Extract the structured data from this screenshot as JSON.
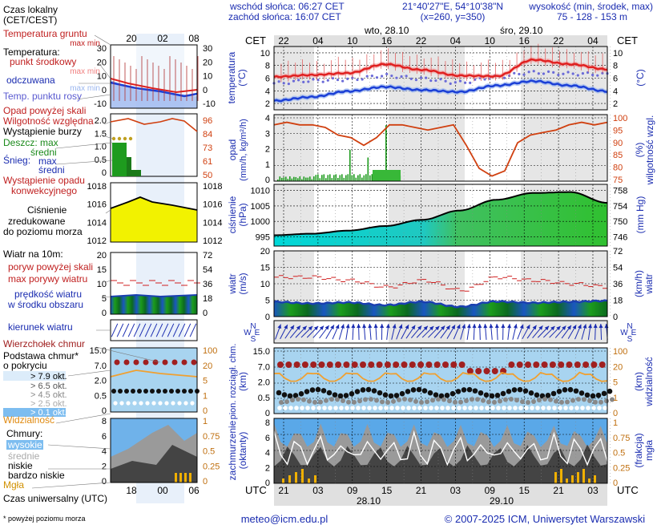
{
  "header": {
    "sunrise": "wschód słońca: 06:27 CET",
    "sunset": "zachód słońca: 16:07 CET",
    "coords": "21°40'27\"E, 54°10'38\"N",
    "grid": "(x=260, y=350)",
    "elev_label": "wysokość (min, środek, max)",
    "elev_values": "75 - 128 - 153 m"
  },
  "legend": {
    "local_time": "Czas lokalny",
    "local_time2": "(CET/CEST)",
    "ground_temp": "Temperatura gruntu",
    "maxmin": "max min",
    "temperature": "Temperatura:",
    "mid_point": "punkt środkowy",
    "maxmin2": "max min",
    "felt": "odczuwana",
    "maxmin3": "max min",
    "dew": "Temp. punktu rosy",
    "precip_over": "Opad powyżej skali",
    "humidity": "Wilgotność względna",
    "storm": "Wystąpienie burzy",
    "rain": "Deszcz: max",
    "rain_mid": "średni",
    "snow": "Śnieg:",
    "snow_max": "max",
    "snow_mid": "średni",
    "conv": "Wystąpienie opadu",
    "conv2": "konwekcyjnego",
    "pressure": "Ciśnienie",
    "pressure2": "zredukowane",
    "pressure3": "do poziomu morza",
    "wind10": "Wiatr na 10m:",
    "gust_over": "poryw powyżej skali",
    "gust_max": "max porywy wiatru",
    "wind_mean": "prędkość wiatru",
    "wind_mean2": "w środku obszaru",
    "wind_dir": "kierunek wiatru",
    "cloud_top": "Wierzchołek chmur",
    "cloud_base": "Podstawa chmur*",
    "cloud_base2": "o pokryciu",
    "okt79": "> 7.9 okt.",
    "okt65": "> 6.5 okt.",
    "okt45": "> 4.5 okt.",
    "okt25": "> 2.5 okt.",
    "okt01": "> 0.1 okt.",
    "visibility": "Widzialność",
    "clouds": "Chmury:",
    "high": "wysokie",
    "mid": "średnie",
    "low": "niskie",
    "vlow": "bardzo niskie",
    "fog": "Mgła",
    "utc": "Czas uniwersalny (UTC)",
    "footnote": "* powyżej poziomu morza"
  },
  "side": {
    "top_hours": [
      "20",
      "02",
      "08"
    ],
    "bottom_hours": [
      "18",
      "00",
      "06"
    ],
    "ground_yticks": [
      "30",
      "20",
      "10",
      "0",
      "-10"
    ],
    "ground_yticks_r": [
      "30",
      "20",
      "10",
      "0",
      "-10"
    ],
    "precip_yticks": [
      "2.0",
      "1.5",
      "1.0",
      "0.5",
      "0"
    ],
    "hum_yticks": [
      "96",
      "84",
      "73",
      "61",
      "50"
    ],
    "pres_yticks": [
      "1018",
      "1016",
      "1014",
      "1012"
    ],
    "pres_yticks_r": [
      "1018",
      "1016",
      "1014",
      "1012"
    ],
    "wind_yticks": [
      "20",
      "15",
      "10",
      "5",
      "0"
    ],
    "wind_yticks_r": [
      "72",
      "54",
      "36",
      "18",
      "0"
    ],
    "cloud_yticks": [
      "15.0",
      "7.0",
      "2.0",
      "0.5",
      "0"
    ],
    "vis_yticks": [
      "100",
      "20",
      "5",
      "1",
      "0"
    ],
    "cl_yticks": [
      "8",
      "6",
      "4",
      "2",
      "0"
    ],
    "cl_yticks_r": [
      "1",
      "0.75",
      "0.5",
      "0.25",
      "0"
    ]
  },
  "main": {
    "cet": "CET",
    "utc": "UTC",
    "day1": "wto, 28.10",
    "day2": "śro, 29.10",
    "date1": "28.10",
    "date2": "29.10",
    "cet_hours": [
      "22",
      "04",
      "10",
      "16",
      "22",
      "04",
      "10",
      "16",
      "22",
      "04"
    ],
    "utc_hours": [
      "21",
      "03",
      "09",
      "15",
      "21",
      "03",
      "09",
      "15",
      "21",
      "03"
    ],
    "temp_label": "temperatura",
    "temp_unit": "(°C)",
    "temp_yticks": [
      "10",
      "8",
      "6",
      "4",
      "2"
    ],
    "precip_label": "opad",
    "precip_unit": "(mm/h, kg/m²/h)",
    "precip_yticks": [
      "4",
      "3",
      "2",
      "1",
      "0"
    ],
    "hum_label": "wilgotność wzgl.",
    "hum_unit": "(%)",
    "hum_yticks": [
      "100",
      "95",
      "90",
      "85",
      "80",
      "75"
    ],
    "pres_label": "ciśnienie",
    "pres_unit": "(hPa)",
    "pres_yticks": [
      "1010",
      "1005",
      "1000",
      "995"
    ],
    "pres_unit_r": "(mm Hg)",
    "pres_yticks_r": [
      "758",
      "754",
      "750",
      "746"
    ],
    "wind_label": "wiatr",
    "wind_unit": "(m/s)",
    "wind_yticks": [
      "20",
      "15",
      "10",
      "5",
      "0"
    ],
    "wind_unit_r": "(km/h)",
    "wind_yticks_r": [
      "72",
      "54",
      "36",
      "18",
      "0"
    ],
    "dir_letters": [
      "N",
      "W",
      "E",
      "S"
    ],
    "cloud_label1": "pion. rozciągł. chm.",
    "cloud_label2": "(km)",
    "cloud_yticks": [
      "15.0",
      "7.0",
      "2.0",
      "0.5",
      "0"
    ],
    "vis_label": "widzialność",
    "vis_unit": "(km)",
    "vis_yticks": [
      "100",
      "20",
      "5",
      "1",
      "0"
    ],
    "cl_label1": "zachmurzenie",
    "cl_label2": "(oktanty)",
    "cl_yticks": [
      "8",
      "6",
      "4",
      "2",
      "0"
    ],
    "fog_label1": "(frakcja)",
    "fog_label2": "mgła",
    "fog_yticks": [
      "1",
      "0.75",
      "0.5",
      "0.25",
      "0"
    ]
  },
  "footer": {
    "email": "meteo@icm.edu.pl",
    "copyright": "© 2007-2025 ICM, Uniwersytet Warszawski"
  },
  "colors": {
    "temp": "#e02020",
    "felt": "#1b3fd6",
    "dew": "#6b6bd8",
    "humidity": "#d04010",
    "rain": "#1e9b1e",
    "pressure_low": "#00d8d8",
    "pressure_high": "#30c030",
    "wind_mean": "#1a3fb0",
    "gust": "#d02020",
    "sky": "#a8d4f0",
    "cloud_dark": "#444444",
    "visibility": "#f0a030",
    "top": "#a02020"
  },
  "chart_data": [
    {
      "type": "line",
      "title": "temperatura",
      "ylabel": "(°C)",
      "ylim": [
        1,
        11
      ],
      "x": [
        "22",
        "04",
        "10",
        "16",
        "22",
        "04",
        "10",
        "16",
        "22",
        "04"
      ],
      "series": [
        {
          "name": "punkt środkowy",
          "values": [
            6.2,
            6.5,
            6.8,
            8.2,
            7.3,
            6.4,
            6.3,
            8.9,
            8.2,
            7.4
          ]
        },
        {
          "name": "odczuwana",
          "values": [
            2.8,
            3.4,
            4.3,
            5.0,
            4.5,
            4.2,
            5.2,
            5.9,
            5.2,
            4.3
          ]
        },
        {
          "name": "Temp. punktu rosy",
          "values": [
            5.2,
            5.6,
            5.8,
            6.4,
            5.9,
            5.3,
            6.2,
            6.9,
            6.7,
            6.6
          ]
        }
      ]
    },
    {
      "type": "bar",
      "title": "opad",
      "ylabel": "(mm/h, kg/m²/h)",
      "ylim": [
        0,
        4
      ],
      "x": [
        "22",
        "04",
        "10",
        "16",
        "22",
        "04",
        "10",
        "16",
        "22",
        "04"
      ],
      "series": [
        {
          "name": "średni",
          "values": [
            0.3,
            0.1,
            0.3,
            0.5,
            0.05,
            0,
            0.1,
            0,
            0,
            0
          ]
        },
        {
          "name": "wilgotność względna",
          "values": [
            97,
            98,
            97,
            89,
            97,
            96,
            93,
            94,
            98,
            98
          ]
        }
      ]
    },
    {
      "type": "area",
      "title": "ciśnienie",
      "ylabel": "(hPa)",
      "ylim": [
        992,
        1012
      ],
      "x": [
        "22",
        "04",
        "10",
        "16",
        "22",
        "04",
        "10",
        "16",
        "22",
        "04"
      ],
      "values": [
        995.5,
        996.0,
        997.0,
        998.5,
        1000.5,
        1003.5,
        1007.0,
        1009.2,
        1009.5,
        1006.0
      ]
    },
    {
      "type": "line",
      "title": "wiatr",
      "ylabel": "(m/s)",
      "ylim": [
        0,
        20
      ],
      "x": [
        "22",
        "04",
        "10",
        "16",
        "22",
        "04",
        "10",
        "16",
        "22",
        "04"
      ],
      "series": [
        {
          "name": "max porywy wiatru",
          "values": [
            12,
            12,
            11,
            9,
            11,
            8,
            12,
            11,
            10,
            9
          ]
        },
        {
          "name": "prędkość wiatru",
          "values": [
            4.5,
            4.0,
            4.3,
            3.5,
            4.5,
            3.0,
            4.6,
            4.2,
            4.5,
            4.8
          ]
        }
      ]
    },
    {
      "type": "scatter",
      "title": "pion. rozciągł. chm.",
      "ylabel": "(km)",
      "x": [
        "22",
        "04",
        "10",
        "16",
        "22",
        "04",
        "10",
        "16",
        "22",
        "04"
      ],
      "series": [
        {
          "name": "Wierzchołek chmur",
          "values": [
            8.2,
            8.2,
            8.2,
            8.2,
            8.1,
            7.8,
            8.3,
            8.4,
            8.4,
            8.4
          ]
        },
        {
          "name": "Widzialność",
          "values": [
            20,
            20,
            14,
            30,
            30,
            12,
            25,
            20,
            18,
            22
          ]
        }
      ]
    },
    {
      "type": "area",
      "title": "zachmurzenie",
      "ylabel": "(oktanty)",
      "ylim": [
        0,
        8
      ],
      "x": [
        "21",
        "03",
        "09",
        "15",
        "21",
        "03",
        "09",
        "15",
        "21",
        "03"
      ],
      "series": [
        {
          "name": "niskie",
          "values": [
            4,
            6,
            5,
            7,
            5,
            6,
            4,
            6,
            5,
            7
          ]
        },
        {
          "name": "wysokie",
          "values": [
            2,
            5,
            6,
            4,
            6,
            5,
            7,
            5,
            6,
            7
          ]
        },
        {
          "name": "Mgła",
          "values": [
            0.05,
            0.02,
            0,
            0,
            0,
            0,
            0,
            0,
            0.1,
            0.2
          ]
        }
      ]
    }
  ]
}
